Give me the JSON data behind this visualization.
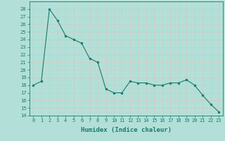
{
  "x": [
    0,
    1,
    2,
    3,
    4,
    5,
    6,
    7,
    8,
    9,
    10,
    11,
    12,
    13,
    14,
    15,
    16,
    17,
    18,
    19,
    20,
    21,
    22,
    23
  ],
  "y": [
    18,
    18.5,
    28,
    26.5,
    24.5,
    24,
    23.5,
    21.5,
    21,
    17.5,
    17,
    17,
    18.5,
    18.3,
    18.3,
    18,
    18,
    18.3,
    18.3,
    18.7,
    18,
    16.7,
    15.5,
    14.5
  ],
  "line_color": "#1a7a6e",
  "marker_color": "#1a7a6e",
  "bg_color": "#b2e0d8",
  "grid_color": "#c8dbd8",
  "xlabel": "Humidex (Indice chaleur)",
  "xlim": [
    -0.5,
    23.5
  ],
  "ylim": [
    14,
    29
  ],
  "yticks": [
    14,
    15,
    16,
    17,
    18,
    19,
    20,
    21,
    22,
    23,
    24,
    25,
    26,
    27,
    28
  ],
  "xticks": [
    0,
    1,
    2,
    3,
    4,
    5,
    6,
    7,
    8,
    9,
    10,
    11,
    12,
    13,
    14,
    15,
    16,
    17,
    18,
    19,
    20,
    21,
    22,
    23
  ],
  "tick_label_fontsize": 5.0,
  "xlabel_fontsize": 6.5,
  "line_width": 0.8,
  "marker_size": 2.0
}
